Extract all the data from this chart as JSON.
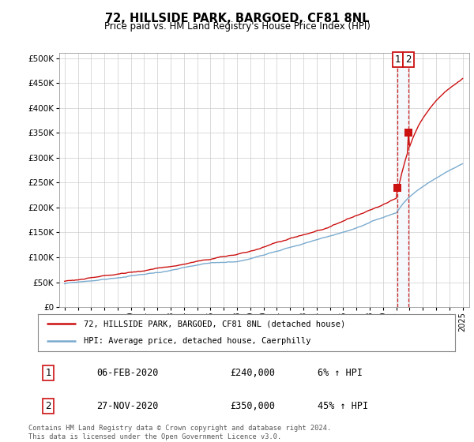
{
  "title": "72, HILLSIDE PARK, BARGOED, CF81 8NL",
  "subtitle": "Price paid vs. HM Land Registry's House Price Index (HPI)",
  "ytick_values": [
    0,
    50000,
    100000,
    150000,
    200000,
    250000,
    300000,
    350000,
    400000,
    450000,
    500000
  ],
  "ylim": [
    0,
    510000
  ],
  "x_start_year": 1995,
  "x_end_year": 2025,
  "hpi_color": "#7aabcf",
  "price_color": "#cc1111",
  "dashed_line_color": "#cc1111",
  "shade_color": "#dce9f5",
  "transaction1_date": "06-FEB-2020",
  "transaction1_price": 240000,
  "transaction1_pct": "6%",
  "transaction2_date": "27-NOV-2020",
  "transaction2_price": 350000,
  "transaction2_pct": "45%",
  "transaction1_x": 2020.1,
  "transaction2_x": 2020.92,
  "legend_label1": "72, HILLSIDE PARK, BARGOED, CF81 8NL (detached house)",
  "legend_label2": "HPI: Average price, detached house, Caerphilly",
  "footnote": "Contains HM Land Registry data © Crown copyright and database right 2024.\nThis data is licensed under the Open Government Licence v3.0.",
  "background_color": "#ffffff",
  "grid_color": "#cccccc"
}
